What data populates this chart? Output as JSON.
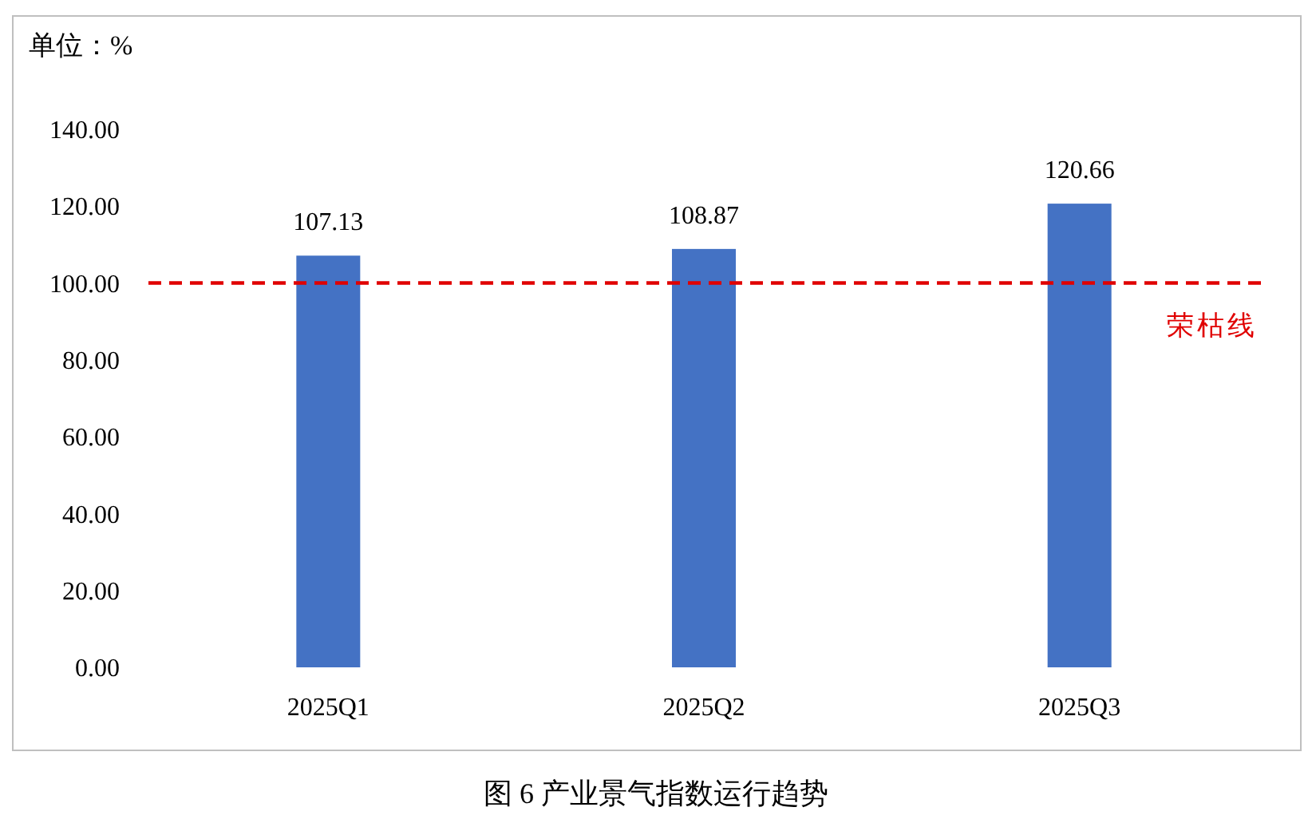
{
  "chart_data": {
    "type": "bar",
    "title": "图 6  产业景气指数运行趋势",
    "ylabel": "单位：%",
    "categories": [
      "2025Q1",
      "2025Q2",
      "2025Q3"
    ],
    "values": [
      107.13,
      108.87,
      120.66
    ],
    "color": "#4472c4",
    "ylim": [
      0,
      140
    ],
    "yticks": [
      {
        "value": 0,
        "label": "0.00"
      },
      {
        "value": 20,
        "label": "20.00"
      },
      {
        "value": 40,
        "label": "40.00"
      },
      {
        "value": 60,
        "label": "60.00"
      },
      {
        "value": 80,
        "label": "80.00"
      },
      {
        "value": 100,
        "label": "100.00"
      },
      {
        "value": 120,
        "label": "120.00"
      },
      {
        "value": 140,
        "label": "140.00"
      }
    ],
    "data_labels": true,
    "grid": false,
    "ref_lines": [
      {
        "axis": "y",
        "value": 100,
        "label": "荣枯线",
        "color": "#e00000",
        "line_style": "dashed"
      }
    ]
  }
}
